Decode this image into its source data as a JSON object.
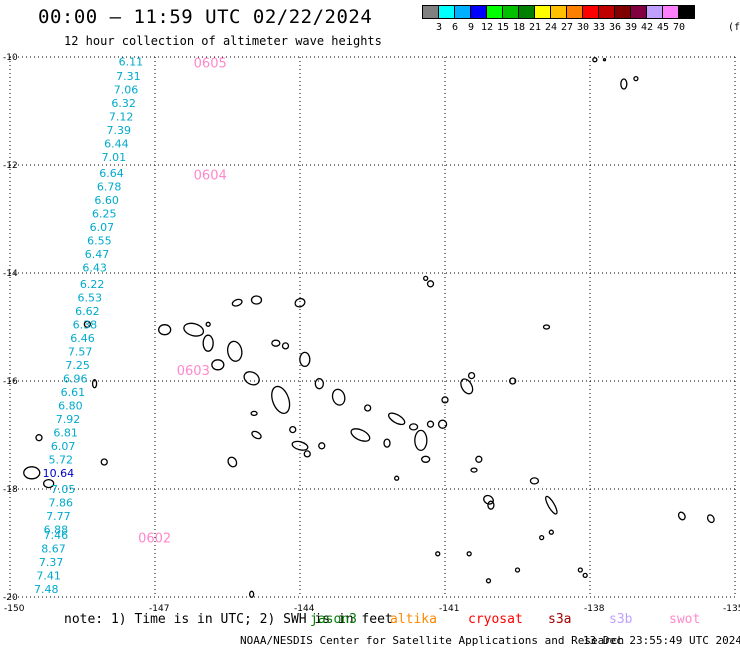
{
  "header": {
    "title": "00:00 – 11:59 UTC 02/22/2024",
    "subtitle": "12 hour collection of altimeter wave heights"
  },
  "legend": {
    "colors": [
      "#808080",
      "#00ffff",
      "#00b0ff",
      "#0000ff",
      "#00ff00",
      "#00c000",
      "#008000",
      "#ffff00",
      "#ffc000",
      "#ff8000",
      "#ff0000",
      "#c00000",
      "#800000",
      "#800040",
      "#c0a0ff",
      "#ff80ff",
      "#000000"
    ],
    "labels": [
      "3",
      "6",
      "9",
      "12",
      "15",
      "18",
      "21",
      "24",
      "27",
      "30",
      "33",
      "36",
      "39",
      "42",
      "45",
      "70"
    ],
    "unit": "(ft)"
  },
  "map": {
    "lat_ticks": [
      "-10",
      "-12",
      "-14",
      "-16",
      "-18",
      "-20"
    ],
    "lon_ticks": [
      "-150",
      "-147",
      "-144",
      "-141",
      "-138",
      "-135"
    ],
    "lat_range": [
      -20,
      -10
    ],
    "lon_range": [
      -150,
      -135
    ],
    "grid": "dotted",
    "track_labels": [
      {
        "text": "0605",
        "lat": -10.1,
        "lon": -146.2,
        "color": "#ff88cc"
      },
      {
        "text": "0604",
        "lat": -12.18,
        "lon": -146.2,
        "color": "#ff88cc"
      },
      {
        "text": "0603",
        "lat": -15.8,
        "lon": -146.55,
        "color": "#ff88cc"
      },
      {
        "text": "0602",
        "lat": -18.9,
        "lon": -147.35,
        "color": "#ff88cc"
      }
    ],
    "wave_heights": [
      {
        "v": "6.11",
        "lat": -10.08,
        "lon": -147.5
      },
      {
        "v": "7.31",
        "lat": -10.35,
        "lon": -147.55
      },
      {
        "v": "7.06",
        "lat": -10.6,
        "lon": -147.6
      },
      {
        "v": "6.32",
        "lat": -10.85,
        "lon": -147.65
      },
      {
        "v": "7.12",
        "lat": -11.1,
        "lon": -147.7
      },
      {
        "v": "7.39",
        "lat": -11.35,
        "lon": -147.75
      },
      {
        "v": "6.44",
        "lat": -11.6,
        "lon": -147.8
      },
      {
        "v": "7.01",
        "lat": -11.85,
        "lon": -147.85
      },
      {
        "v": "6.64",
        "lat": -12.15,
        "lon": -147.9
      },
      {
        "v": "6.78",
        "lat": -12.4,
        "lon": -147.95
      },
      {
        "v": "6.60",
        "lat": -12.65,
        "lon": -148.0
      },
      {
        "v": "6.25",
        "lat": -12.9,
        "lon": -148.05
      },
      {
        "v": "6.07",
        "lat": -13.15,
        "lon": -148.1
      },
      {
        "v": "6.55",
        "lat": -13.4,
        "lon": -148.15
      },
      {
        "v": "6.47",
        "lat": -13.65,
        "lon": -148.2
      },
      {
        "v": "6.43",
        "lat": -13.9,
        "lon": -148.25
      },
      {
        "v": "6.22",
        "lat": -14.2,
        "lon": -148.3
      },
      {
        "v": "6.53",
        "lat": -14.45,
        "lon": -148.35
      },
      {
        "v": "6.62",
        "lat": -14.7,
        "lon": -148.4
      },
      {
        "v": "6.38",
        "lat": -14.95,
        "lon": -148.45
      },
      {
        "v": "6.46",
        "lat": -15.2,
        "lon": -148.5
      },
      {
        "v": "7.57",
        "lat": -15.45,
        "lon": -148.55
      },
      {
        "v": "7.25",
        "lat": -15.7,
        "lon": -148.6
      },
      {
        "v": "6.96",
        "lat": -15.95,
        "lon": -148.65
      },
      {
        "v": "6.61",
        "lat": -16.2,
        "lon": -148.7
      },
      {
        "v": "6.80",
        "lat": -16.45,
        "lon": -148.75
      },
      {
        "v": "7.92",
        "lat": -16.7,
        "lon": -148.8
      },
      {
        "v": "6.81",
        "lat": -16.95,
        "lon": -148.85
      },
      {
        "v": "6.07",
        "lat": -17.2,
        "lon": -148.9
      },
      {
        "v": "5.72",
        "lat": -17.45,
        "lon": -148.95
      },
      {
        "v": "10.64",
        "lat": -17.7,
        "lon": -149.0,
        "color": "#0000cc"
      },
      {
        "v": "7.05",
        "lat": -18.0,
        "lon": -148.9
      },
      {
        "v": "7.86",
        "lat": -18.25,
        "lon": -148.95
      },
      {
        "v": "7.77",
        "lat": -18.5,
        "lon": -149.0
      },
      {
        "v": "6.88",
        "lat": -18.75,
        "lon": -149.05
      },
      {
        "v": "7.46",
        "lat": -18.85,
        "lon": -149.05
      },
      {
        "v": "8.67",
        "lat": -19.1,
        "lon": -149.1
      },
      {
        "v": "7.37",
        "lat": -19.35,
        "lon": -149.15
      },
      {
        "v": "7.41",
        "lat": -19.6,
        "lon": -149.2
      },
      {
        "v": "7.48",
        "lat": -19.85,
        "lon": -149.25
      }
    ],
    "islands": [
      {
        "lat": -15.05,
        "lon": -146.2,
        "rx": 10,
        "ry": 6,
        "rot": 15
      },
      {
        "lat": -15.05,
        "lon": -146.8,
        "rx": 6,
        "ry": 5,
        "rot": 0
      },
      {
        "lat": -15.45,
        "lon": -145.35,
        "rx": 7,
        "ry": 10,
        "rot": -10
      },
      {
        "lat": -15.3,
        "lon": -145.9,
        "rx": 5,
        "ry": 8,
        "rot": 0
      },
      {
        "lat": -15.7,
        "lon": -145.7,
        "rx": 6,
        "ry": 5,
        "rot": 0
      },
      {
        "lat": -14.55,
        "lon": -145.3,
        "rx": 5,
        "ry": 3,
        "rot": -20
      },
      {
        "lat": -14.5,
        "lon": -144.9,
        "rx": 5,
        "ry": 4,
        "rot": 0
      },
      {
        "lat": -14.55,
        "lon": -144.0,
        "rx": 5,
        "ry": 4,
        "rot": -20
      },
      {
        "lat": -15.3,
        "lon": -144.5,
        "rx": 4,
        "ry": 3,
        "rot": 0
      },
      {
        "lat": -15.35,
        "lon": -144.3,
        "rx": 3,
        "ry": 3,
        "rot": 0
      },
      {
        "lat": -15.95,
        "lon": -145.0,
        "rx": 8,
        "ry": 6,
        "rot": 30
      },
      {
        "lat": -16.35,
        "lon": -144.4,
        "rx": 8,
        "ry": 14,
        "rot": -20
      },
      {
        "lat": -16.3,
        "lon": -143.2,
        "rx": 6,
        "ry": 8,
        "rot": -15
      },
      {
        "lat": -16.05,
        "lon": -143.6,
        "rx": 4,
        "ry": 5,
        "rot": 0
      },
      {
        "lat": -15.6,
        "lon": -143.9,
        "rx": 5,
        "ry": 7,
        "rot": 0
      },
      {
        "lat": -16.7,
        "lon": -142.0,
        "rx": 9,
        "ry": 4,
        "rot": 30
      },
      {
        "lat": -16.5,
        "lon": -142.6,
        "rx": 3,
        "ry": 3,
        "rot": 0
      },
      {
        "lat": -17.0,
        "lon": -142.75,
        "rx": 10,
        "ry": 5,
        "rot": 25
      },
      {
        "lat": -17.1,
        "lon": -141.5,
        "rx": 6,
        "ry": 10,
        "rot": 0
      },
      {
        "lat": -16.8,
        "lon": -141.05,
        "rx": 4,
        "ry": 4,
        "rot": 0
      },
      {
        "lat": -16.35,
        "lon": -141.0,
        "rx": 3,
        "ry": 3,
        "rot": 0
      },
      {
        "lat": -16.1,
        "lon": -140.55,
        "rx": 5,
        "ry": 8,
        "rot": -30
      },
      {
        "lat": -15.9,
        "lon": -140.45,
        "rx": 3,
        "ry": 3,
        "rot": 0
      },
      {
        "lat": -16.85,
        "lon": -141.65,
        "rx": 4,
        "ry": 3,
        "rot": 0
      },
      {
        "lat": -17.15,
        "lon": -142.2,
        "rx": 3,
        "ry": 4,
        "rot": 0
      },
      {
        "lat": -16.8,
        "lon": -141.3,
        "rx": 3,
        "ry": 3,
        "rot": 0
      },
      {
        "lat": -17.0,
        "lon": -144.9,
        "rx": 5,
        "ry": 3,
        "rot": 30
      },
      {
        "lat": -17.45,
        "lon": -141.4,
        "rx": 4,
        "ry": 3,
        "rot": 0
      },
      {
        "lat": -17.45,
        "lon": -140.3,
        "rx": 3,
        "ry": 3,
        "rot": 0
      },
      {
        "lat": -17.65,
        "lon": -140.4,
        "rx": 3,
        "ry": 2,
        "rot": 0
      },
      {
        "lat": -17.85,
        "lon": -139.15,
        "rx": 4,
        "ry": 3,
        "rot": 0
      },
      {
        "lat": -18.2,
        "lon": -140.1,
        "rx": 5,
        "ry": 4,
        "rot": 30
      },
      {
        "lat": -18.3,
        "lon": -140.05,
        "rx": 3,
        "ry": 4,
        "rot": 0
      },
      {
        "lat": -18.3,
        "lon": -138.8,
        "rx": 3,
        "ry": 10,
        "rot": -30
      },
      {
        "lat": -17.5,
        "lon": -148.05,
        "rx": 3,
        "ry": 3,
        "rot": 0
      },
      {
        "lat": -17.7,
        "lon": -149.55,
        "rx": 8,
        "ry": 6,
        "rot": 0
      },
      {
        "lat": -17.9,
        "lon": -149.2,
        "rx": 5,
        "ry": 4,
        "rot": 0
      },
      {
        "lat": -17.05,
        "lon": -149.4,
        "rx": 3,
        "ry": 3,
        "rot": 0
      },
      {
        "lat": -17.5,
        "lon": -145.4,
        "rx": 4,
        "ry": 5,
        "rot": -30
      },
      {
        "lat": -17.2,
        "lon": -144.0,
        "rx": 8,
        "ry": 4,
        "rot": 15
      },
      {
        "lat": -17.35,
        "lon": -143.85,
        "rx": 3,
        "ry": 3,
        "rot": 0
      },
      {
        "lat": -16.9,
        "lon": -144.15,
        "rx": 3,
        "ry": 3,
        "rot": 0
      },
      {
        "lat": -17.2,
        "lon": -143.55,
        "rx": 3,
        "ry": 3,
        "rot": 0
      },
      {
        "lat": -14.2,
        "lon": -141.3,
        "rx": 3,
        "ry": 3,
        "rot": 0
      },
      {
        "lat": -14.1,
        "lon": -141.4,
        "rx": 2,
        "ry": 2,
        "rot": 0
      },
      {
        "lat": -15.0,
        "lon": -138.9,
        "rx": 3,
        "ry": 2,
        "rot": 0
      },
      {
        "lat": -16.0,
        "lon": -139.6,
        "rx": 3,
        "ry": 3,
        "rot": 0
      },
      {
        "lat": -16.05,
        "lon": -148.25,
        "rx": 2,
        "ry": 4,
        "rot": 0
      },
      {
        "lat": -14.95,
        "lon": -148.4,
        "rx": 3,
        "ry": 3,
        "rot": 0
      },
      {
        "lat": -10.5,
        "lon": -137.3,
        "rx": 3,
        "ry": 5,
        "rot": 0
      },
      {
        "lat": -10.4,
        "lon": -137.05,
        "rx": 2,
        "ry": 2,
        "rot": 0
      },
      {
        "lat": -10.05,
        "lon": -137.9,
        "rx": 2,
        "ry": 2,
        "rot": 0
      },
      {
        "lat": -10.05,
        "lon": -137.7,
        "rx": 1,
        "ry": 1,
        "rot": 0
      },
      {
        "lat": -18.5,
        "lon": -136.1,
        "rx": 3,
        "ry": 4,
        "rot": -30
      },
      {
        "lat": -18.55,
        "lon": -135.5,
        "rx": 3,
        "ry": 4,
        "rot": -30
      },
      {
        "lat": -18.9,
        "lon": -139.0,
        "rx": 2,
        "ry": 2,
        "rot": 0
      },
      {
        "lat": -19.5,
        "lon": -138.2,
        "rx": 2,
        "ry": 2,
        "rot": 0
      },
      {
        "lat": -19.6,
        "lon": -138.1,
        "rx": 2,
        "ry": 2,
        "rot": 0
      },
      {
        "lat": -19.2,
        "lon": -141.15,
        "rx": 2,
        "ry": 2,
        "rot": 0
      },
      {
        "lat": -19.5,
        "lon": -139.5,
        "rx": 2,
        "ry": 2,
        "rot": 0
      },
      {
        "lat": -19.7,
        "lon": -140.1,
        "rx": 2,
        "ry": 2,
        "rot": 0
      },
      {
        "lat": -19.2,
        "lon": -140.5,
        "rx": 2,
        "ry": 2,
        "rot": 0
      },
      {
        "lat": -19.95,
        "lon": -145.0,
        "rx": 2,
        "ry": 3,
        "rot": 0
      },
      {
        "lat": -17.8,
        "lon": -142.0,
        "rx": 2,
        "ry": 2,
        "rot": 0
      },
      {
        "lat": -18.8,
        "lon": -138.8,
        "rx": 2,
        "ry": 2,
        "rot": 0
      },
      {
        "lat": -14.95,
        "lon": -145.9,
        "rx": 2,
        "ry": 2,
        "rot": 0
      },
      {
        "lat": -16.6,
        "lon": -144.95,
        "rx": 3,
        "ry": 2,
        "rot": 0
      }
    ]
  },
  "footer": {
    "note": "note:  1) Time is in UTC; 2) SWH is in feet",
    "satellites": [
      {
        "name": "jason3",
        "color": "#008000",
        "left": 310
      },
      {
        "name": "altika",
        "color": "#ff8800",
        "left": 390
      },
      {
        "name": "cryosat",
        "color": "#ff0000",
        "left": 468
      },
      {
        "name": "s3a",
        "color": "#a00000",
        "left": 548
      },
      {
        "name": "s3b",
        "color": "#c0a0ff",
        "left": 609
      },
      {
        "name": "swot",
        "color": "#ff88cc",
        "left": 669
      }
    ],
    "credit": "NOAA/NESDIS Center for Satellite Applications and Research",
    "generated": "13 Dec 23:55:49 UTC 2024"
  }
}
